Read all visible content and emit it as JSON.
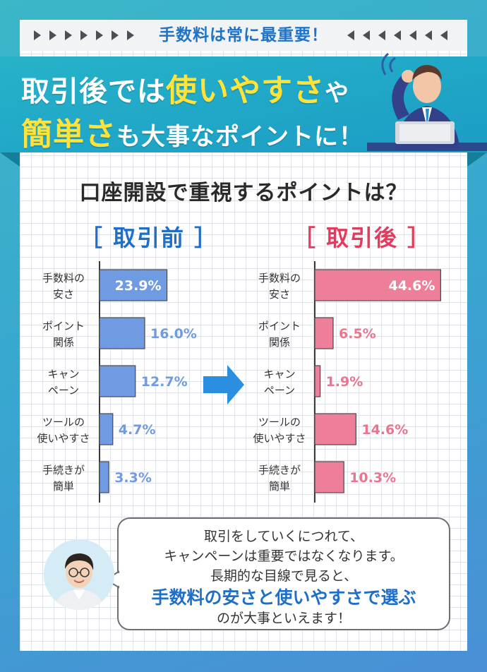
{
  "header": {
    "tag": "手数料は常に最重要！",
    "headline_line1": [
      "取引後では",
      "使いやすさ",
      "や"
    ],
    "headline_line2": [
      "簡単さ",
      "も大事なポイントに！"
    ]
  },
  "section_title": "口座開設で重視するポイントは？",
  "colors": {
    "before_bar": "#6f9be2",
    "before_label": "#6f9be2",
    "after_bar": "#ee7f9a",
    "after_label": "#e9768f",
    "before_head": "#1f6fc9",
    "after_head": "#e23b5e",
    "arrow": "#2c8ee0",
    "accent_yellow": "#ffe23a"
  },
  "chart_data": [
    {
      "type": "bar",
      "orientation": "horizontal",
      "title": "［ 取引前 ］",
      "categories": [
        [
          "手数料の",
          "安さ"
        ],
        [
          "ポイント",
          "関係"
        ],
        [
          "キャン",
          "ペーン"
        ],
        [
          "ツールの",
          "使いやすさ"
        ],
        [
          "手続きが",
          "簡単"
        ]
      ],
      "values": [
        23.9,
        16.0,
        12.7,
        4.7,
        3.3
      ],
      "value_labels": [
        "23.9%",
        "16.0%",
        "12.7%",
        "4.7%",
        "3.3%"
      ],
      "xlim": [
        0,
        50
      ],
      "grid": false,
      "legend": "none"
    },
    {
      "type": "bar",
      "orientation": "horizontal",
      "title": "［ 取引後 ］",
      "categories": [
        [
          "手数料の",
          "安さ"
        ],
        [
          "ポイント",
          "関係"
        ],
        [
          "キャン",
          "ペーン"
        ],
        [
          "ツールの",
          "使いやすさ"
        ],
        [
          "手続きが",
          "簡単"
        ]
      ],
      "values": [
        44.6,
        6.5,
        1.9,
        14.6,
        10.3
      ],
      "value_labels": [
        "44.6%",
        "6.5%",
        "1.9%",
        "14.6%",
        "10.3%"
      ],
      "xlim": [
        0,
        50
      ],
      "grid": false,
      "legend": "none"
    }
  ],
  "comment": {
    "line1": "取引をしていくにつれて、",
    "line2": "キャンペーンは重要ではなくなります。",
    "line3": "長期的な目線で見ると、",
    "line4_strong": "手数料の安さと使いやすさで選ぶ",
    "line5": "のが大事といえます！"
  }
}
